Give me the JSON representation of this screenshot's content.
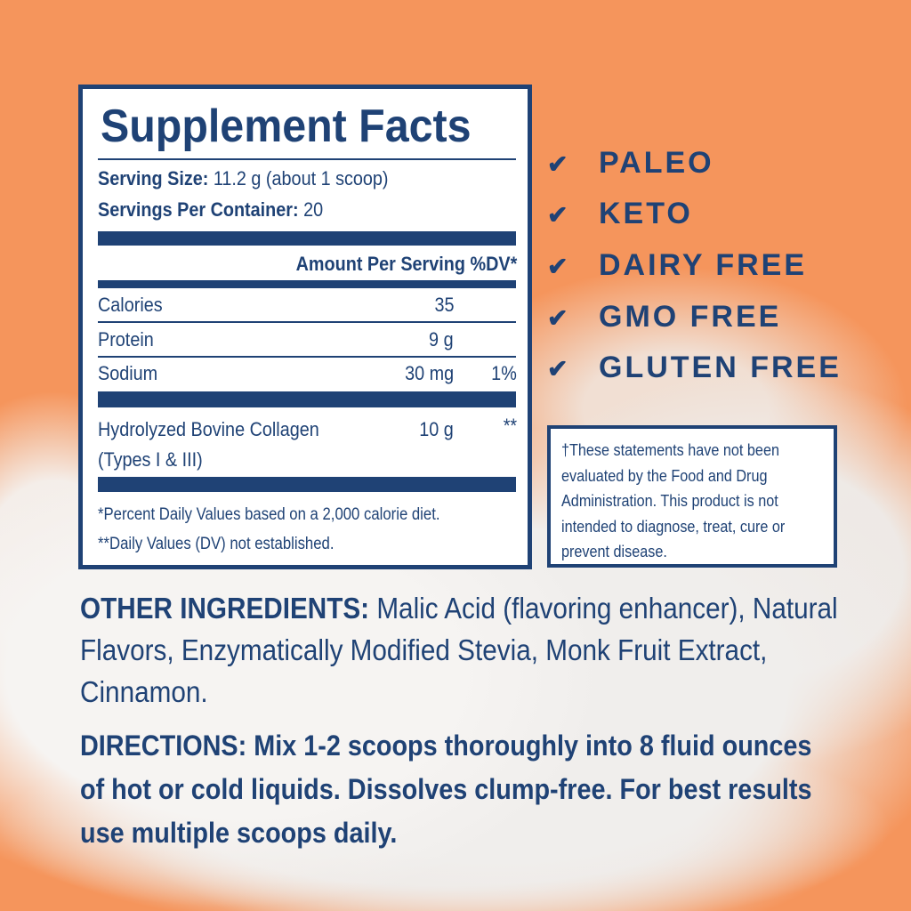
{
  "colors": {
    "brand_navy": "#1f4275",
    "background_orange": "#f5955c"
  },
  "facts": {
    "title": "Supplement Facts",
    "serving_size_label": "Serving Size:",
    "serving_size_value": "11.2 g (about 1 scoop)",
    "servings_label": "Servings Per Container:",
    "servings_value": "20",
    "header": "Amount Per Serving %DV*",
    "rows": [
      {
        "name": "Calories",
        "amount": "35",
        "dv": ""
      },
      {
        "name": "Protein",
        "amount": "9 g",
        "dv": ""
      },
      {
        "name": "Sodium",
        "amount": "30 mg",
        "dv": "1%"
      },
      {
        "name": "Hydrolyzed Bovine Collagen",
        "name2": "(Types I & III)",
        "amount": "10 g",
        "dv": "**"
      }
    ],
    "footnote1": "*Percent Daily Values based on a 2,000 calorie diet.",
    "footnote2": "**Daily Values (DV) not established."
  },
  "badges": {
    "icon": "check-icon",
    "items": [
      "PALEO",
      "KETO",
      "DAIRY FREE",
      "GMO FREE",
      "GLUTEN FREE"
    ]
  },
  "disclaimer": "†These statements have not been evaluated by the Food and Drug Administration. This product is not intended to diagnose, treat, cure or prevent disease.",
  "other_ingredients": {
    "label": "OTHER INGREDIENTS:",
    "text": " Malic Acid (flavoring enhancer), Natural Flavors, Enzymatically Modified Stevia, Monk Fruit Extract, Cinnamon."
  },
  "directions": {
    "label": "DIRECTIONS:",
    "text": " Mix 1-2 scoops thoroughly into 8 fluid ounces of hot or cold liquids. Dissolves clump-free. For best results use multiple scoops daily."
  }
}
